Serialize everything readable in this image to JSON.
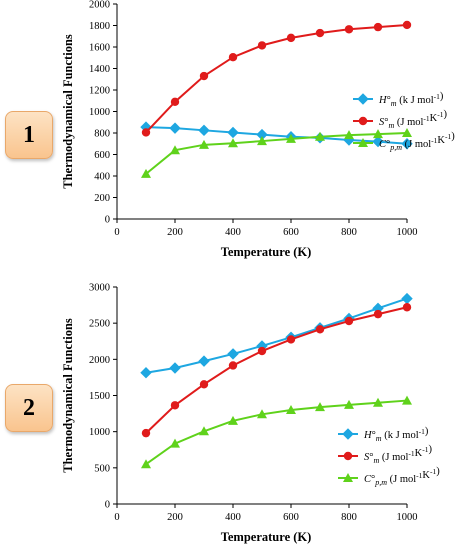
{
  "badges": [
    "1",
    "2"
  ],
  "chart_data": [
    {
      "type": "line",
      "badge": "1",
      "xlabel": "Temperature (K)",
      "ylabel": "Thermodynamical Functions",
      "xlim": [
        0,
        1000
      ],
      "ylim": [
        0,
        2000
      ],
      "xticks": [
        0,
        200,
        400,
        600,
        800,
        1000
      ],
      "yticks": [
        0,
        200,
        400,
        600,
        800,
        1000,
        1200,
        1400,
        1600,
        1800,
        2000
      ],
      "legend_position": "right",
      "x": [
        100,
        200,
        300,
        400,
        500,
        600,
        700,
        800,
        900,
        1000
      ],
      "series": [
        {
          "name": "H°m (k J mol-1)",
          "color": "#1ea7e1",
          "marker": "diamond",
          "values": [
            855,
            845,
            825,
            805,
            785,
            765,
            755,
            735,
            720,
            700
          ]
        },
        {
          "name": "S°m (J mol-1K-1)",
          "color": "#e01b1b",
          "marker": "circle",
          "values": [
            805,
            1090,
            1330,
            1505,
            1615,
            1685,
            1730,
            1765,
            1785,
            1805
          ]
        },
        {
          "name": "C°p,m (J mol-1K-1)",
          "color": "#5fd21b",
          "marker": "triangle",
          "values": [
            420,
            640,
            690,
            705,
            725,
            745,
            765,
            780,
            790,
            800
          ]
        }
      ]
    },
    {
      "type": "line",
      "badge": "2",
      "xlabel": "Temperature (K)",
      "ylabel": "Thermodynamical Functions",
      "xlim": [
        0,
        1000
      ],
      "ylim": [
        0,
        3000
      ],
      "xticks": [
        0,
        200,
        400,
        600,
        800,
        1000
      ],
      "yticks": [
        0,
        500,
        1000,
        1500,
        2000,
        2500,
        3000
      ],
      "legend_position": "bottom-right",
      "x": [
        100,
        200,
        300,
        400,
        500,
        600,
        700,
        800,
        900,
        1000
      ],
      "series": [
        {
          "name": "H°m (k J mol-1)",
          "color": "#1ea7e1",
          "marker": "diamond",
          "values": [
            1815,
            1880,
            1975,
            2075,
            2185,
            2305,
            2435,
            2565,
            2705,
            2840
          ]
        },
        {
          "name": "S°m (J mol-1K-1)",
          "color": "#e01b1b",
          "marker": "circle",
          "values": [
            980,
            1365,
            1655,
            1915,
            2115,
            2275,
            2415,
            2530,
            2625,
            2720
          ]
        },
        {
          "name": "C°p,m (J mol-1K-1)",
          "color": "#5fd21b",
          "marker": "triangle",
          "values": [
            550,
            835,
            1005,
            1150,
            1240,
            1300,
            1340,
            1370,
            1400,
            1430
          ]
        }
      ]
    }
  ]
}
